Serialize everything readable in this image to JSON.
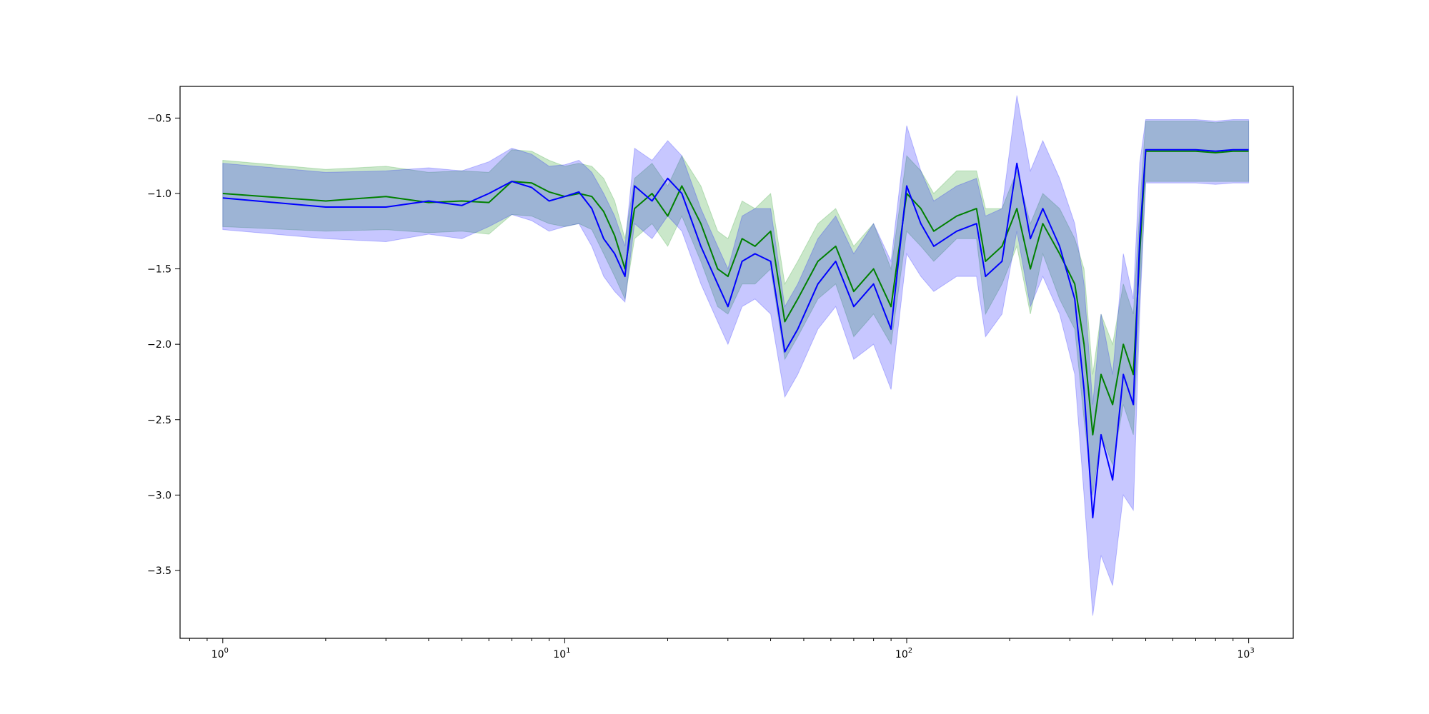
{
  "chart_data": {
    "type": "line",
    "title": "",
    "xlabel": "",
    "ylabel": "",
    "xscale": "log",
    "xlim": [
      0.75,
      1350
    ],
    "ylim": [
      -3.95,
      -0.29
    ],
    "grid": false,
    "x_ticks": [
      {
        "base": "10",
        "exp": "0",
        "value": 1
      },
      {
        "base": "10",
        "exp": "1",
        "value": 10
      },
      {
        "base": "10",
        "exp": "2",
        "value": 100
      },
      {
        "base": "10",
        "exp": "3",
        "value": 1000
      }
    ],
    "y_ticks": [
      {
        "label": "−0.5",
        "value": -0.5
      },
      {
        "label": "−1.0",
        "value": -1.0
      },
      {
        "label": "−1.5",
        "value": -1.5
      },
      {
        "label": "−2.0",
        "value": -2.0
      },
      {
        "label": "−2.5",
        "value": -2.5
      },
      {
        "label": "−3.0",
        "value": -3.0
      },
      {
        "label": "−3.5",
        "value": -3.5
      }
    ],
    "series": [
      {
        "color": "#008000",
        "band_color": "#2ca02c",
        "band_opacity": 0.25,
        "x": [
          1,
          2,
          3,
          4,
          5,
          6,
          7,
          8,
          9,
          10,
          11,
          12,
          13,
          14,
          15,
          16,
          18,
          20,
          22,
          25,
          28,
          30,
          33,
          36,
          40,
          44,
          48,
          55,
          62,
          70,
          80,
          90,
          100,
          110,
          120,
          140,
          160,
          170,
          190,
          210,
          230,
          250,
          280,
          310,
          330,
          350,
          370,
          400,
          430,
          460,
          480,
          500,
          600,
          700,
          800,
          900,
          1000
        ],
        "y": [
          -1.0,
          -1.05,
          -1.02,
          -1.06,
          -1.05,
          -1.06,
          -0.92,
          -0.93,
          -0.99,
          -1.02,
          -1.0,
          -1.02,
          -1.12,
          -1.28,
          -1.5,
          -1.1,
          -1.0,
          -1.15,
          -0.95,
          -1.2,
          -1.5,
          -1.55,
          -1.3,
          -1.35,
          -1.25,
          -1.85,
          -1.7,
          -1.45,
          -1.35,
          -1.65,
          -1.5,
          -1.75,
          -1.0,
          -1.1,
          -1.25,
          -1.15,
          -1.1,
          -1.45,
          -1.35,
          -1.1,
          -1.5,
          -1.2,
          -1.4,
          -1.6,
          -2.0,
          -2.6,
          -2.2,
          -2.4,
          -2.0,
          -2.2,
          -1.4,
          -0.72,
          -0.72,
          -0.72,
          -0.73,
          -0.72,
          -0.72
        ],
        "lower": [
          -1.22,
          -1.25,
          -1.24,
          -1.26,
          -1.25,
          -1.27,
          -1.14,
          -1.15,
          -1.2,
          -1.22,
          -1.2,
          -1.24,
          -1.4,
          -1.55,
          -1.7,
          -1.3,
          -1.2,
          -1.35,
          -1.15,
          -1.45,
          -1.75,
          -1.8,
          -1.6,
          -1.6,
          -1.5,
          -2.1,
          -1.95,
          -1.7,
          -1.6,
          -1.95,
          -1.8,
          -2.0,
          -1.25,
          -1.35,
          -1.45,
          -1.3,
          -1.3,
          -1.8,
          -1.6,
          -1.35,
          -1.8,
          -1.4,
          -1.7,
          -1.9,
          -2.5,
          -3.0,
          -2.6,
          -2.8,
          -2.4,
          -2.6,
          -1.7,
          -0.92,
          -0.92,
          -0.92,
          -0.92,
          -0.92,
          -0.92
        ],
        "upper": [
          -0.78,
          -0.84,
          -0.82,
          -0.86,
          -0.85,
          -0.86,
          -0.71,
          -0.72,
          -0.78,
          -0.82,
          -0.8,
          -0.82,
          -0.9,
          -1.05,
          -1.3,
          -0.9,
          -0.8,
          -0.95,
          -0.75,
          -0.95,
          -1.25,
          -1.3,
          -1.05,
          -1.1,
          -1.0,
          -1.6,
          -1.45,
          -1.2,
          -1.1,
          -1.35,
          -1.2,
          -1.5,
          -0.75,
          -0.85,
          -1.0,
          -0.85,
          -0.85,
          -1.1,
          -1.1,
          -0.85,
          -1.2,
          -1.0,
          -1.1,
          -1.3,
          -1.5,
          -2.2,
          -1.8,
          -2.0,
          -1.6,
          -1.8,
          -1.1,
          -0.52,
          -0.52,
          -0.52,
          -0.53,
          -0.52,
          -0.52
        ]
      },
      {
        "color": "#0000ff",
        "band_color": "#0000ff",
        "band_opacity": 0.22,
        "x": [
          1,
          2,
          3,
          4,
          5,
          6,
          7,
          8,
          9,
          10,
          11,
          12,
          13,
          14,
          15,
          16,
          18,
          20,
          22,
          25,
          28,
          30,
          33,
          36,
          40,
          44,
          48,
          55,
          62,
          70,
          80,
          90,
          100,
          110,
          120,
          140,
          160,
          170,
          190,
          210,
          230,
          250,
          280,
          310,
          330,
          350,
          370,
          400,
          430,
          460,
          480,
          500,
          600,
          700,
          800,
          900,
          1000
        ],
        "y": [
          -1.03,
          -1.09,
          -1.09,
          -1.05,
          -1.08,
          -1.0,
          -0.92,
          -0.96,
          -1.05,
          -1.02,
          -0.99,
          -1.1,
          -1.3,
          -1.4,
          -1.55,
          -0.95,
          -1.05,
          -0.9,
          -1.0,
          -1.35,
          -1.6,
          -1.75,
          -1.45,
          -1.4,
          -1.45,
          -2.05,
          -1.9,
          -1.6,
          -1.45,
          -1.75,
          -1.6,
          -1.9,
          -0.95,
          -1.2,
          -1.35,
          -1.25,
          -1.2,
          -1.55,
          -1.45,
          -0.8,
          -1.3,
          -1.1,
          -1.35,
          -1.7,
          -2.3,
          -3.15,
          -2.6,
          -2.9,
          -2.2,
          -2.4,
          -1.3,
          -0.71,
          -0.71,
          -0.71,
          -0.72,
          -0.71,
          -0.71
        ],
        "lower": [
          -1.24,
          -1.3,
          -1.32,
          -1.27,
          -1.3,
          -1.22,
          -1.14,
          -1.18,
          -1.25,
          -1.22,
          -1.2,
          -1.35,
          -1.55,
          -1.65,
          -1.72,
          -1.2,
          -1.3,
          -1.15,
          -1.25,
          -1.6,
          -1.85,
          -2.0,
          -1.75,
          -1.7,
          -1.8,
          -2.35,
          -2.2,
          -1.9,
          -1.75,
          -2.1,
          -2.0,
          -2.3,
          -1.4,
          -1.55,
          -1.65,
          -1.55,
          -1.55,
          -1.95,
          -1.8,
          -1.25,
          -1.75,
          -1.55,
          -1.8,
          -2.2,
          -3.0,
          -3.8,
          -3.4,
          -3.6,
          -3.0,
          -3.1,
          -1.8,
          -0.93,
          -0.93,
          -0.93,
          -0.94,
          -0.93,
          -0.93
        ],
        "upper": [
          -0.8,
          -0.86,
          -0.85,
          -0.83,
          -0.85,
          -0.79,
          -0.7,
          -0.74,
          -0.82,
          -0.81,
          -0.78,
          -0.86,
          -1.0,
          -1.15,
          -1.35,
          -0.7,
          -0.78,
          -0.65,
          -0.75,
          -1.1,
          -1.35,
          -1.5,
          -1.15,
          -1.1,
          -1.1,
          -1.75,
          -1.6,
          -1.3,
          -1.15,
          -1.4,
          -1.2,
          -1.45,
          -0.55,
          -0.85,
          -1.05,
          -0.95,
          -0.9,
          -1.15,
          -1.1,
          -0.35,
          -0.85,
          -0.65,
          -0.9,
          -1.2,
          -1.6,
          -2.4,
          -1.8,
          -2.2,
          -1.4,
          -1.7,
          -0.8,
          -0.51,
          -0.51,
          -0.51,
          -0.52,
          -0.51,
          -0.51
        ]
      }
    ]
  }
}
